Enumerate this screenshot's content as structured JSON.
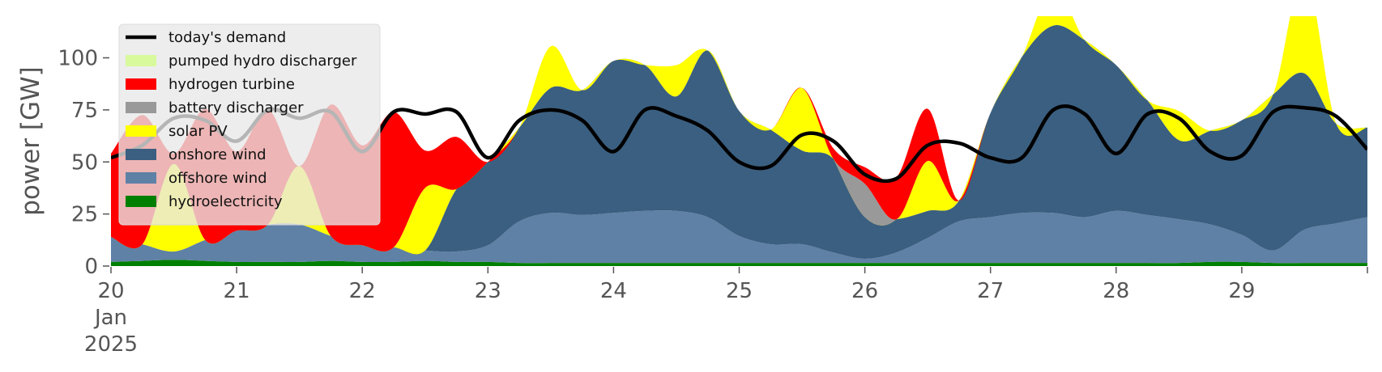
{
  "chart_data": {
    "type": "area",
    "title": "",
    "xlabel": "",
    "ylabel": "power [GW]",
    "ylim": [
      0,
      120
    ],
    "xlim": [
      "2025-01-20 00:00",
      "2025-01-30 00:00"
    ],
    "y_ticks": [
      {
        "value": 0,
        "label": "0"
      },
      {
        "value": 25,
        "label": "25"
      },
      {
        "value": 50,
        "label": "50"
      },
      {
        "value": 75,
        "label": "75"
      },
      {
        "value": 100,
        "label": "100"
      }
    ],
    "x_ticks": [
      {
        "x": "2025-01-20",
        "label": "20",
        "sub": [
          "Jan",
          "2025"
        ]
      },
      {
        "x": "2025-01-21",
        "label": "21"
      },
      {
        "x": "2025-01-22",
        "label": "22"
      },
      {
        "x": "2025-01-23",
        "label": "23"
      },
      {
        "x": "2025-01-24",
        "label": "24"
      },
      {
        "x": "2025-01-25",
        "label": "25"
      },
      {
        "x": "2025-01-26",
        "label": "26"
      },
      {
        "x": "2025-01-27",
        "label": "27"
      },
      {
        "x": "2025-01-28",
        "label": "28"
      },
      {
        "x": "2025-01-29",
        "label": "29"
      }
    ],
    "grid": false,
    "legend_position": "upper-left",
    "x": [
      "2025-01-20 00:00",
      "2025-01-20 06:00",
      "2025-01-20 12:00",
      "2025-01-20 18:00",
      "2025-01-21 00:00",
      "2025-01-21 06:00",
      "2025-01-21 12:00",
      "2025-01-21 18:00",
      "2025-01-22 00:00",
      "2025-01-22 06:00",
      "2025-01-22 12:00",
      "2025-01-22 18:00",
      "2025-01-23 00:00",
      "2025-01-23 06:00",
      "2025-01-23 12:00",
      "2025-01-23 18:00",
      "2025-01-24 00:00",
      "2025-01-24 06:00",
      "2025-01-24 12:00",
      "2025-01-24 18:00",
      "2025-01-25 00:00",
      "2025-01-25 06:00",
      "2025-01-25 12:00",
      "2025-01-25 18:00",
      "2025-01-26 00:00",
      "2025-01-26 06:00",
      "2025-01-26 12:00",
      "2025-01-26 18:00",
      "2025-01-27 00:00",
      "2025-01-27 06:00",
      "2025-01-27 12:00",
      "2025-01-27 18:00",
      "2025-01-28 00:00",
      "2025-01-28 06:00",
      "2025-01-28 12:00",
      "2025-01-28 18:00",
      "2025-01-29 00:00",
      "2025-01-29 06:00",
      "2025-01-29 12:00",
      "2025-01-29 18:00",
      "2025-01-30 00:00"
    ],
    "series": [
      {
        "name": "hydroelectricity",
        "kind": "area",
        "color": "#008000",
        "values": [
          2,
          2.5,
          3,
          2.5,
          2,
          2,
          2,
          2.5,
          2,
          2,
          2.5,
          2,
          2,
          1.5,
          1.5,
          1.5,
          1.5,
          1.5,
          1.5,
          1.5,
          1.5,
          1.5,
          1.5,
          1.5,
          1.5,
          1.5,
          1.5,
          1.5,
          1.5,
          1.5,
          1.5,
          1.5,
          1.5,
          1.5,
          1.5,
          2,
          2,
          1.5,
          1.5,
          1.5,
          1.5
        ]
      },
      {
        "name": "offshore wind",
        "kind": "area",
        "color": "#5f81a5",
        "values": [
          12,
          8,
          4,
          10,
          15,
          18,
          18,
          12,
          8,
          7,
          5,
          5,
          8,
          20,
          24,
          23,
          24,
          25,
          25,
          22,
          13,
          9,
          9,
          5,
          2,
          5,
          12,
          20,
          22,
          24,
          24,
          22,
          25,
          23,
          21,
          18,
          13,
          6,
          16,
          19,
          22
        ]
      },
      {
        "name": "onshore wind",
        "kind": "area",
        "color": "#3b5f80",
        "values": [
          0,
          0,
          0,
          0,
          0,
          0,
          0,
          0,
          0,
          0,
          0,
          30,
          40,
          45,
          60,
          60,
          73,
          70,
          55,
          80,
          60,
          55,
          45,
          45,
          20,
          16,
          13,
          10,
          50,
          75,
          90,
          85,
          70,
          55,
          38,
          45,
          55,
          75,
          75,
          48,
          43
        ]
      },
      {
        "name": "solar PV",
        "kind": "area",
        "color": "#ffff00",
        "values": [
          0,
          0,
          42,
          0,
          0,
          0,
          28,
          0,
          0,
          0,
          30,
          0,
          0,
          0,
          20,
          0,
          0,
          0,
          15,
          0,
          0,
          0,
          30,
          0,
          0,
          0,
          24,
          0,
          0,
          0,
          18,
          0,
          0,
          0,
          14,
          0,
          0,
          0,
          48,
          0,
          0
        ]
      },
      {
        "name": "battery discharger",
        "kind": "area",
        "color": "#999999",
        "values": [
          0,
          0,
          0,
          0,
          0,
          0,
          0,
          0,
          0,
          0,
          0,
          0,
          0,
          0,
          0,
          0,
          0,
          0,
          0,
          0,
          0,
          0,
          0,
          0,
          16,
          0,
          0,
          0,
          0,
          0,
          0,
          0,
          0,
          0,
          0,
          0,
          0,
          0,
          0,
          0,
          0
        ]
      },
      {
        "name": "hydrogen turbine",
        "kind": "area",
        "color": "#ff0000",
        "values": [
          40,
          62,
          5,
          63,
          38,
          55,
          0,
          63,
          48,
          65,
          18,
          25,
          0,
          0,
          0,
          0,
          0,
          0,
          0,
          0,
          0,
          0,
          0,
          5,
          8,
          20,
          25,
          0,
          0,
          0,
          0,
          0,
          0,
          0,
          0,
          0,
          0,
          0,
          0,
          0,
          0
        ]
      },
      {
        "name": "pumped hydro discharger",
        "kind": "area",
        "color": "#d9f99d",
        "values": [
          0,
          0,
          0,
          0,
          0,
          0,
          0,
          0,
          0,
          0,
          0,
          0,
          0,
          0,
          0,
          0,
          0,
          0,
          0,
          0,
          0,
          0,
          0,
          0,
          0,
          0,
          0,
          0,
          0,
          0,
          0,
          0,
          0,
          0,
          0,
          0,
          0,
          0,
          0,
          0,
          0
        ]
      },
      {
        "name": "today's demand",
        "kind": "line",
        "color": "#000000",
        "values": [
          52,
          58,
          71,
          70,
          60,
          75,
          71,
          74,
          55,
          74,
          73,
          74,
          52,
          70,
          75,
          70,
          55,
          75,
          72,
          65,
          50,
          48,
          63,
          60,
          44,
          42,
          58,
          59,
          52,
          52,
          75,
          73,
          54,
          73,
          71,
          55,
          53,
          74,
          76,
          72,
          56
        ]
      }
    ]
  }
}
